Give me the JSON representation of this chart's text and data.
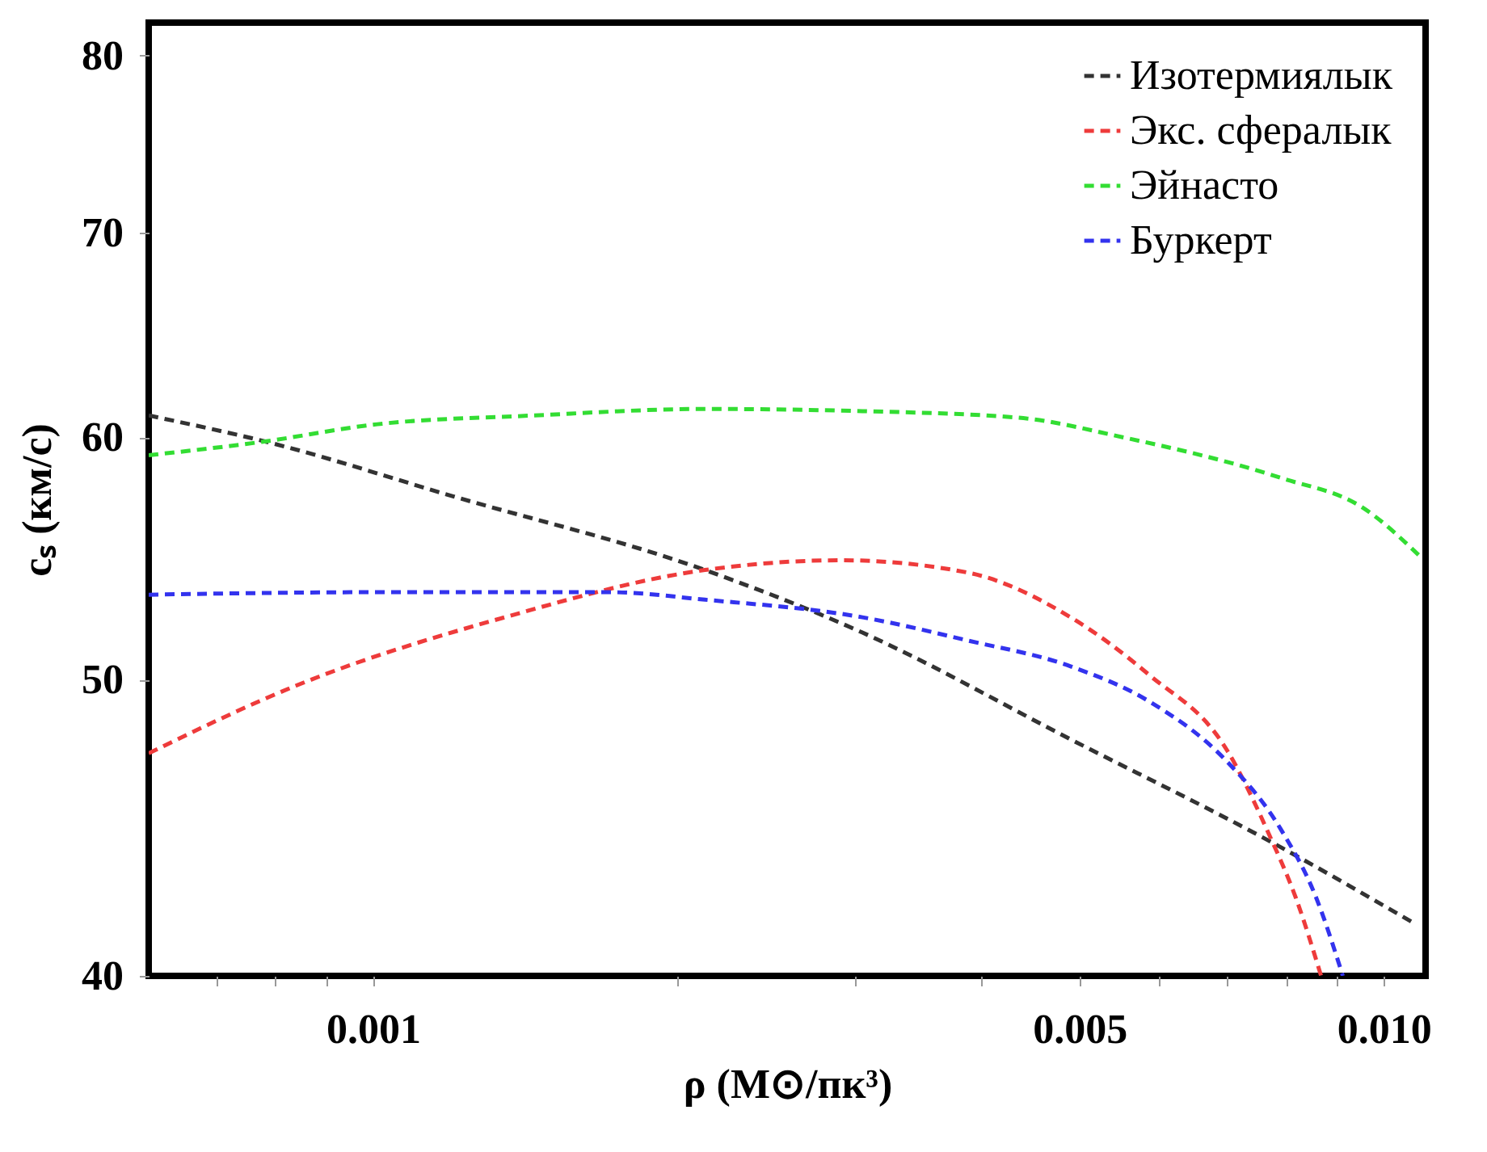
{
  "chart_data": {
    "type": "line",
    "xlabel": "ρ (M⊙/пк³)",
    "ylabel": "cₛ (км/с)",
    "log": "xy",
    "xlim": [
      0.0006,
      0.011
    ],
    "ylim": [
      40,
      82
    ],
    "xticks": [
      {
        "value": 0.0007,
        "label": null
      },
      {
        "value": 0.0008,
        "label": null
      },
      {
        "value": 0.0009,
        "label": null
      },
      0.001,
      {
        "value": 0.002,
        "label": null
      },
      {
        "value": 0.003,
        "label": null
      },
      {
        "value": 0.004,
        "label": null
      },
      0.005,
      {
        "value": 0.006,
        "label": null
      },
      {
        "value": 0.007,
        "label": null
      },
      {
        "value": 0.008,
        "label": null
      },
      {
        "value": 0.009,
        "label": null
      },
      {
        "value": 0.01,
        "label": "0.010"
      }
    ],
    "yticks": [
      40,
      50,
      60,
      70,
      80
    ],
    "grid": false,
    "legend": "top right",
    "line_style": "dashed",
    "marker": "none",
    "series": [
      {
        "name": "Изотермиялык",
        "color": "#333333",
        "x": [
          0.0006,
          0.000785,
          0.0012,
          0.00213,
          0.00305,
          0.0049,
          0.00778,
          0.01074
        ],
        "values": [
          61.0,
          59.8,
          57.4,
          54.3,
          51.8,
          47.8,
          44.2,
          41.6
        ]
      },
      {
        "name": "Экс. сфералык",
        "color": "#ee3b3b",
        "x": [
          0.0006,
          0.000843,
          0.00135,
          0.00213,
          0.00291,
          0.00387,
          0.0049,
          0.00585,
          0.007,
          0.0077,
          0.00819,
          0.00867
        ],
        "values": [
          47.3,
          49.8,
          52.4,
          54.3,
          54.7,
          54.2,
          52.4,
          50.2,
          47.4,
          44.5,
          42.4,
          40.0
        ]
      },
      {
        "name": "Эйнасто",
        "color": "#33dd33",
        "x": [
          0.0006,
          0.000776,
          0.00101,
          0.00144,
          0.00213,
          0.00305,
          0.00435,
          0.00553,
          0.00791,
          0.00954,
          0.0109
        ],
        "values": [
          59.2,
          59.8,
          60.6,
          61.0,
          61.3,
          61.2,
          60.9,
          60.0,
          58.2,
          56.9,
          54.8
        ]
      },
      {
        "name": "Буркерт",
        "color": "#3333ee",
        "x": [
          0.0006,
          0.00101,
          0.00172,
          0.00213,
          0.00305,
          0.00387,
          0.0049,
          0.00585,
          0.007,
          0.0079,
          0.00858,
          0.00911
        ],
        "values": [
          53.3,
          53.4,
          53.4,
          53.1,
          52.4,
          51.5,
          50.5,
          49.2,
          47.0,
          44.7,
          42.4,
          40.0
        ]
      }
    ]
  }
}
